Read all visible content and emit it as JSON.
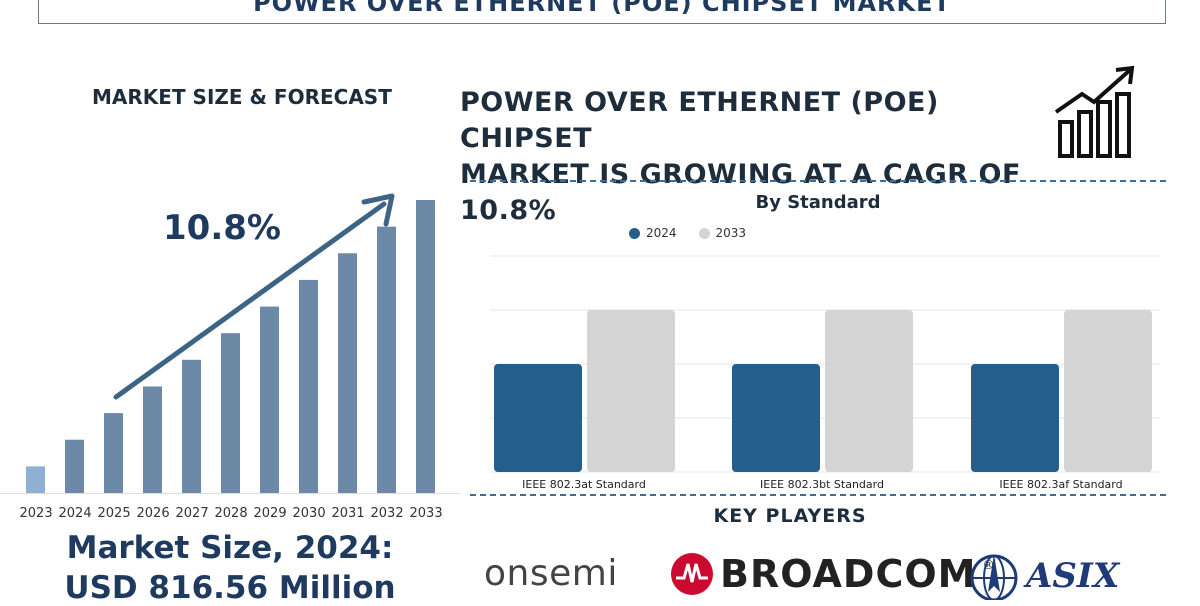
{
  "header": {
    "title": "POWER OVER ETHERNET (POE) CHIPSET MARKET"
  },
  "left": {
    "section_label": "MARKET SIZE & FORECAST",
    "cagr_value": "10.8%",
    "market_size_line1": "Market Size, 2024:",
    "market_size_line2": "USD 816.56 Million"
  },
  "right": {
    "headline_line1": "POWER OVER ETHERNET (POE) CHIPSET",
    "headline_line2": "MARKET IS GROWING AT A CAGR OF 10.8%",
    "growth_icon": "bar-chart-growth-icon",
    "key_players_label": "KEY PLAYERS",
    "logos": [
      {
        "name": "onsemi",
        "text": "onsemi",
        "icon": "onsemi-logo"
      },
      {
        "name": "broadcom",
        "text": "BROADCOM",
        "icon": "broadcom-logo",
        "mark": "®"
      },
      {
        "name": "asix",
        "text": "ASIX",
        "icon": "asix-logo"
      }
    ]
  },
  "chart_data": [
    {
      "type": "bar",
      "categories": [
        "2023",
        "2024",
        "2025",
        "2026",
        "2027",
        "2028",
        "2029",
        "2030",
        "2031",
        "2032",
        "2033"
      ],
      "values": [
        1.0,
        2.0,
        3.0,
        4.0,
        5.0,
        6.0,
        7.0,
        8.0,
        9.0,
        10.0,
        11.0
      ],
      "title": "",
      "xlabel": "",
      "ylabel": "",
      "grid": false,
      "colors": {
        "first": "#8fb0d3",
        "rest": "#6d89a8",
        "arrow": "#3d6485"
      }
    },
    {
      "type": "bar",
      "title": "By Standard",
      "categories": [
        "IEEE 802.3at Standard",
        "IEEE 802.3bt Standard",
        "IEEE 802.3af Standard"
      ],
      "series": [
        {
          "name": "2024",
          "values": [
            2.0,
            2.0,
            2.0
          ],
          "color": "#245e8c"
        },
        {
          "name": "2033",
          "values": [
            3.0,
            3.0,
            3.0
          ],
          "color": "#d4d4d4"
        }
      ],
      "ylim": [
        0,
        4
      ],
      "grid": true,
      "legend": "top-center"
    }
  ]
}
